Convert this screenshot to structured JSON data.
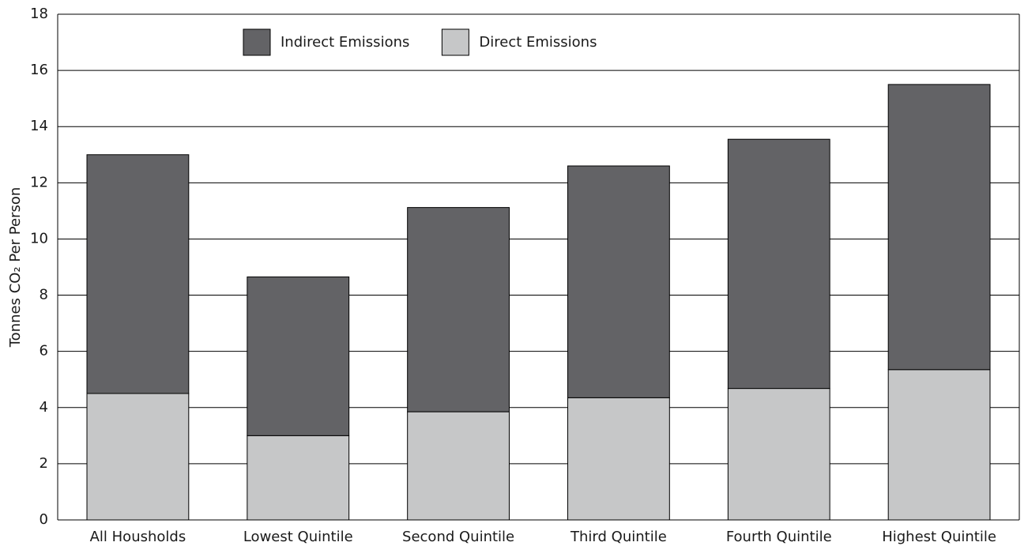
{
  "chart_data": {
    "type": "stacked_bar",
    "y_label": "Tonnes CO₂ Per Person",
    "categories": [
      "All Housholds",
      "Lowest Quintile",
      "Second Quintile",
      "Third Quintile",
      "Fourth Quintile",
      "Highest Quintile"
    ],
    "series": [
      {
        "name": "Direct Emissions",
        "color": "#c6c7c8",
        "values": [
          4.5,
          3.0,
          3.85,
          4.35,
          4.68,
          5.35
        ]
      },
      {
        "name": "Indirect Emissions",
        "color": "#636366",
        "values": [
          8.5,
          5.65,
          7.27,
          8.25,
          8.87,
          10.15
        ]
      }
    ],
    "ylim": [
      0,
      18
    ],
    "yticks": [
      0,
      2,
      4,
      6,
      8,
      10,
      12,
      14,
      16,
      18
    ],
    "grid": true
  }
}
